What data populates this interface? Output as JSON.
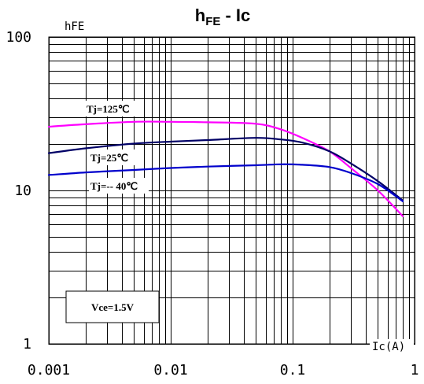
{
  "chart_data": {
    "type": "line",
    "title": "h",
    "title_sub": "FE",
    "title_tail": " - Ic",
    "ylabel": "hFE",
    "xlabel": "Ic(A)",
    "x_scale": "log",
    "y_scale": "log",
    "xlim": [
      0.001,
      1
    ],
    "ylim": [
      1,
      100
    ],
    "x_ticks": [
      {
        "value": 0.001,
        "label": "0.001"
      },
      {
        "value": 0.01,
        "label": "0.01"
      },
      {
        "value": 0.1,
        "label": "0.1"
      },
      {
        "value": 1,
        "label": "1"
      }
    ],
    "y_ticks": [
      {
        "value": 1,
        "label": "1"
      },
      {
        "value": 10,
        "label": "10"
      },
      {
        "value": 100,
        "label": "100"
      }
    ],
    "grid": true,
    "series": [
      {
        "name": "Tj=125℃",
        "color": "#ff00ff",
        "x": [
          0.001,
          0.002,
          0.005,
          0.01,
          0.02,
          0.05,
          0.08,
          0.12,
          0.2,
          0.3,
          0.5,
          0.8
        ],
        "y": [
          26,
          27,
          28,
          28,
          27.8,
          27.2,
          25,
          22,
          18,
          14,
          10,
          6.8
        ]
      },
      {
        "name": "Tj=25℃",
        "color": "#000066",
        "x": [
          0.001,
          0.002,
          0.005,
          0.01,
          0.02,
          0.05,
          0.08,
          0.12,
          0.2,
          0.3,
          0.5,
          0.8
        ],
        "y": [
          17.5,
          18.8,
          20.2,
          20.8,
          21.3,
          22,
          21.5,
          20.5,
          18,
          15,
          11.5,
          8.6
        ]
      },
      {
        "name": "Tj=-- 40℃",
        "color": "#0000cc",
        "x": [
          0.001,
          0.002,
          0.005,
          0.01,
          0.02,
          0.05,
          0.08,
          0.12,
          0.2,
          0.3,
          0.5,
          0.8
        ],
        "y": [
          12.6,
          13.1,
          13.6,
          14,
          14.3,
          14.6,
          14.8,
          14.7,
          14.2,
          13,
          11,
          8.5
        ]
      }
    ],
    "annotations": [
      {
        "text": "Vce=1.5V"
      }
    ]
  }
}
